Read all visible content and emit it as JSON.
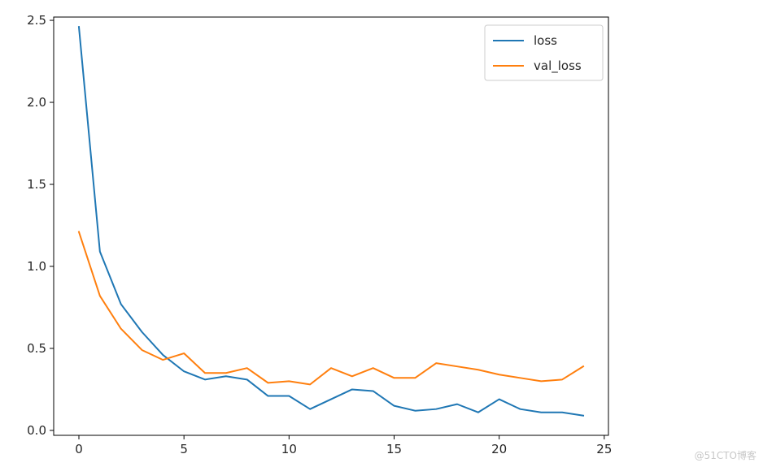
{
  "chart_data": {
    "type": "line",
    "title": "",
    "xlabel": "",
    "ylabel": "",
    "xlim": [
      -1.2,
      25.2
    ],
    "ylim": [
      -0.03,
      2.52
    ],
    "x_ticks": [
      0,
      5,
      10,
      15,
      20,
      25
    ],
    "y_ticks": [
      0.0,
      0.5,
      1.0,
      1.5,
      2.0,
      2.5
    ],
    "x_tick_labels": [
      "0",
      "5",
      "10",
      "15",
      "20",
      "25"
    ],
    "y_tick_labels": [
      "0.0",
      "0.5",
      "1.0",
      "1.5",
      "2.0",
      "2.5"
    ],
    "grid": false,
    "legend_position": "top-right",
    "x": [
      0,
      1,
      2,
      3,
      4,
      5,
      6,
      7,
      8,
      9,
      10,
      11,
      12,
      13,
      14,
      15,
      16,
      17,
      18,
      19,
      20,
      21,
      22,
      23,
      24
    ],
    "series": [
      {
        "name": "loss",
        "color": "#1f77b4",
        "values": [
          2.46,
          1.09,
          0.77,
          0.6,
          0.46,
          0.36,
          0.31,
          0.33,
          0.31,
          0.21,
          0.21,
          0.13,
          0.19,
          0.25,
          0.24,
          0.15,
          0.12,
          0.13,
          0.16,
          0.11,
          0.19,
          0.13,
          0.11,
          0.11,
          0.09
        ]
      },
      {
        "name": "val_loss",
        "color": "#ff7f0e",
        "values": [
          1.21,
          0.82,
          0.62,
          0.49,
          0.43,
          0.47,
          0.35,
          0.35,
          0.38,
          0.29,
          0.3,
          0.28,
          0.38,
          0.33,
          0.38,
          0.32,
          0.32,
          0.41,
          0.39,
          0.37,
          0.34,
          0.32,
          0.3,
          0.31,
          0.39
        ]
      }
    ]
  },
  "watermark": "@51CTO博客"
}
